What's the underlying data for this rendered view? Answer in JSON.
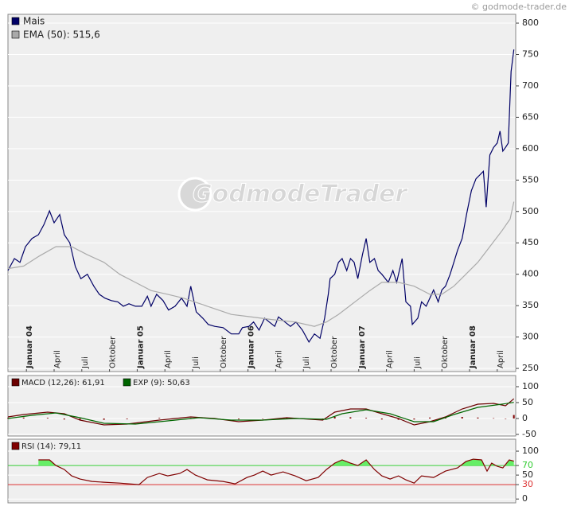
{
  "source": "© godmode-trader.de",
  "watermark": "GodmodeTrader",
  "chart_data": [
    {
      "type": "line",
      "xlim": [
        -2,
        53
      ],
      "ylim": [
        245,
        814
      ],
      "yticks": [
        250,
        300,
        350,
        400,
        450,
        500,
        550,
        600,
        650,
        700,
        750,
        800
      ],
      "xticks": [
        {
          "value": 0,
          "label": "Januar 04"
        },
        {
          "value": 3,
          "label": "April"
        },
        {
          "value": 6,
          "label": "Juli"
        },
        {
          "value": 9,
          "label": "Oktober"
        },
        {
          "value": 12,
          "label": "Januar 05"
        },
        {
          "value": 15,
          "label": "April"
        },
        {
          "value": 18,
          "label": "Juli"
        },
        {
          "value": 21,
          "label": "Oktober"
        },
        {
          "value": 24,
          "label": "Januar 06"
        },
        {
          "value": 27,
          "label": "April"
        },
        {
          "value": 30,
          "label": "Juli"
        },
        {
          "value": 33,
          "label": "Oktober"
        },
        {
          "value": 36,
          "label": "Januar 07"
        },
        {
          "value": 39,
          "label": "April"
        },
        {
          "value": 42,
          "label": "Juli"
        },
        {
          "value": 45,
          "label": "Oktober"
        },
        {
          "value": 48,
          "label": "Januar 08"
        },
        {
          "value": 51,
          "label": "April"
        }
      ],
      "grid": true,
      "series": [
        {
          "name": "Mais",
          "color": "#000066",
          "x": [
            -2,
            -1.3,
            -0.7,
            -0.1,
            0.6,
            1.3,
            1.9,
            2.5,
            3,
            3.6,
            4.1,
            4.7,
            5.3,
            5.9,
            6.6,
            7.3,
            7.9,
            8.5,
            9.2,
            9.9,
            10.5,
            11.1,
            11.8,
            12.5,
            13.1,
            13.5,
            14.1,
            14.8,
            15.4,
            16.1,
            16.8,
            17.4,
            17.8,
            18.4,
            19.1,
            19.7,
            20.4,
            21.3,
            22.2,
            23,
            23.4,
            24.1,
            24.6,
            25.2,
            25.8,
            26.3,
            26.9,
            27.3,
            28,
            28.6,
            29.2,
            29.9,
            30.6,
            31.2,
            31.8,
            32.3,
            32.7,
            32.9,
            33.4,
            33.8,
            34.2,
            34.7,
            35.1,
            35.5,
            35.9,
            36.4,
            36.8,
            37.2,
            37.7,
            38.1,
            38.5,
            39.2,
            39.7,
            40.1,
            40.7,
            41.1,
            41.6,
            41.8,
            42.4,
            42.8,
            43.3,
            43.7,
            44.1,
            44.6,
            45,
            45.4,
            45.9,
            46.3,
            46.7,
            47.2,
            47.7,
            48.2,
            48.7,
            49.1,
            49.5,
            49.8,
            50.2,
            50.6,
            51,
            51.3,
            51.6,
            51.9,
            52.2,
            52.5,
            52.8
          ],
          "values": [
            406,
            425,
            419,
            444,
            457,
            463,
            479,
            501,
            482,
            495,
            463,
            450,
            412,
            393,
            400,
            381,
            368,
            362,
            358,
            356,
            349,
            353,
            349,
            349,
            365,
            349,
            368,
            358,
            343,
            349,
            362,
            349,
            381,
            340,
            330,
            320,
            317,
            315,
            305,
            305,
            315,
            317,
            324,
            311,
            330,
            324,
            317,
            332,
            324,
            317,
            324,
            311,
            292,
            305,
            298,
            330,
            368,
            393,
            400,
            419,
            425,
            406,
            425,
            419,
            393,
            431,
            457,
            419,
            425,
            406,
            400,
            387,
            406,
            387,
            425,
            356,
            349,
            320,
            330,
            356,
            349,
            362,
            375,
            356,
            375,
            381,
            400,
            419,
            438,
            457,
            497,
            533,
            552,
            558,
            564,
            507,
            590,
            602,
            609,
            628,
            596,
            602,
            609,
            723,
            758
          ]
        },
        {
          "name": "EMA (50): 515,6",
          "color": "#aaaaaa",
          "x": [
            -2,
            -0.3,
            1.4,
            3.2,
            4.9,
            6.6,
            8.4,
            10.1,
            11.8,
            13.5,
            15.3,
            17,
            19.6,
            22.2,
            23.9,
            26.5,
            29.1,
            31.2,
            32.5,
            33.8,
            35.5,
            37.2,
            38.5,
            40.3,
            42,
            43.7,
            45,
            46.3,
            47.6,
            48.9,
            50.2,
            51.5,
            52.4,
            52.8
          ],
          "values": [
            409,
            413,
            429,
            444,
            444,
            431,
            419,
            400,
            387,
            374,
            368,
            362,
            349,
            336,
            333,
            328,
            324,
            317,
            324,
            336,
            355,
            374,
            387,
            387,
            381,
            368,
            368,
            381,
            400,
            419,
            444,
            469,
            488,
            515.6
          ]
        }
      ]
    },
    {
      "type": "line",
      "xlim": [
        -2,
        53
      ],
      "ylim": [
        -55,
        135
      ],
      "yticks": [
        -50,
        0,
        50,
        100
      ],
      "grid": true,
      "series": [
        {
          "type": "bar",
          "color": "#800000",
          "x": [
            -2,
            -0.3,
            2.3,
            4.1,
            5.8,
            8.4,
            10.9,
            14.4,
            17.8,
            20.4,
            23,
            25.6,
            28.2,
            30.8,
            32.1,
            33.4,
            35.1,
            36.8,
            38.5,
            40.3,
            42,
            43.7,
            45.4,
            47.2,
            48.9,
            50.6,
            51.9,
            52.8
          ],
          "values": [
            2,
            3,
            2,
            -3,
            -5,
            -4,
            -2,
            2,
            2,
            -1,
            -2,
            0,
            1,
            -1,
            -2,
            5,
            4,
            2,
            -3,
            -4,
            -3,
            3,
            4,
            5,
            3,
            1,
            -1,
            11
          ]
        },
        {
          "name": "MACD (12,26): 61,91",
          "color": "#6b0000",
          "x": [
            -2,
            -0.3,
            2.3,
            4.1,
            5.8,
            8.4,
            10.9,
            14.4,
            17.8,
            20.4,
            23,
            25.6,
            28.2,
            30.8,
            32.1,
            33.4,
            35.1,
            36.8,
            38.5,
            40.3,
            42,
            43.7,
            45.4,
            47.2,
            48.9,
            50.6,
            51.9,
            52.8
          ],
          "values": [
            5,
            12.5,
            20,
            15,
            -5,
            -20,
            -17.5,
            -5,
            5,
            0,
            -10,
            -5,
            2.5,
            -2.5,
            -5,
            20,
            30,
            30,
            15,
            0,
            -20,
            -10,
            5,
            30,
            45,
            47.5,
            40,
            61.91
          ]
        },
        {
          "name": "EXP (9): 50,63",
          "color": "#006600",
          "x": [
            -2,
            0.6,
            3.2,
            5.8,
            8.4,
            11.8,
            15.3,
            18.7,
            22.2,
            25.6,
            29.1,
            32.5,
            34.2,
            36.8,
            39.4,
            42,
            44.1,
            46.3,
            48.9,
            51.5,
            52.8
          ],
          "values": [
            0,
            10,
            17.5,
            2.5,
            -15,
            -17.5,
            -7.5,
            2.5,
            -5,
            -5,
            0,
            -2.5,
            15,
            27.5,
            15,
            -10,
            -10,
            12.5,
            35,
            45,
            50.63
          ]
        }
      ]
    },
    {
      "type": "line",
      "xlim": [
        -2,
        53
      ],
      "ylim": [
        -8,
        125
      ],
      "yticks": [
        0,
        30,
        50,
        70,
        100
      ],
      "grid": true,
      "levels": [
        {
          "value": 70,
          "color": "#33cc33"
        },
        {
          "value": 30,
          "color": "#dd3333"
        }
      ],
      "fill_above": {
        "value": 70,
        "color": "#66ee66"
      },
      "series": [
        {
          "name": "RSI (14): 79,11",
          "color": "#800000",
          "x": [
            1.3,
            2.5,
            3.2,
            4.1,
            4.9,
            5.8,
            7.1,
            8.4,
            10.1,
            12.2,
            13.1,
            14.4,
            15.3,
            16.6,
            17.4,
            18.3,
            19.6,
            21.3,
            22.6,
            23.9,
            24.7,
            25.6,
            26.5,
            27.8,
            29.1,
            30.3,
            31.6,
            32.5,
            33.4,
            34.2,
            35.1,
            35.9,
            36.8,
            37.7,
            38.5,
            39.4,
            40.3,
            41.1,
            42,
            42.8,
            44.1,
            45.4,
            46.7,
            47.6,
            48.4,
            49.3,
            49.9,
            50.4,
            51,
            51.6,
            52.3,
            52.8
          ],
          "values": [
            81.7,
            81.7,
            70,
            61.7,
            48.3,
            41.7,
            36.7,
            35,
            33.3,
            30,
            45,
            53.3,
            48.3,
            53.3,
            61.7,
            50,
            40,
            36.7,
            31.7,
            45,
            50,
            58.3,
            50,
            56.7,
            48.3,
            38.3,
            45,
            61.7,
            75,
            81.7,
            75,
            70,
            81.7,
            61.7,
            48.3,
            41.7,
            48.3,
            40,
            33.3,
            48.3,
            45,
            58.3,
            65,
            78.3,
            83.3,
            81.7,
            58.3,
            75,
            68.3,
            65,
            81.7,
            79.11
          ]
        }
      ]
    }
  ]
}
